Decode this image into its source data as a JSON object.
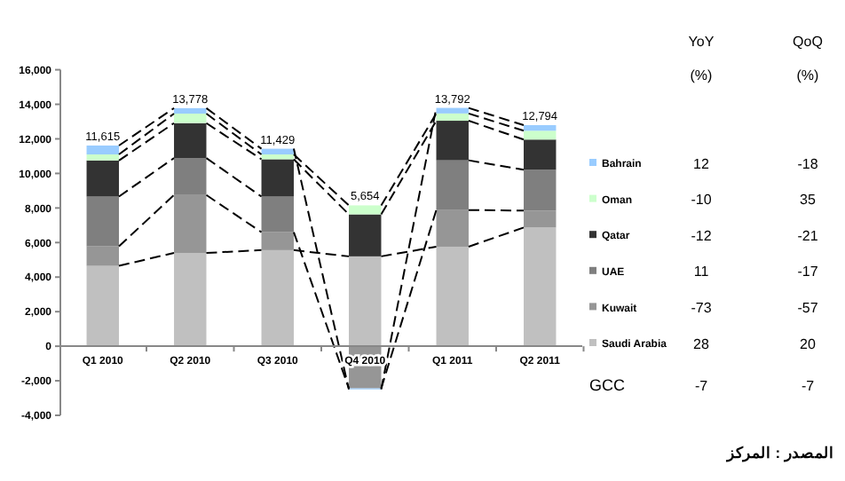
{
  "chart_data": {
    "type": "bar",
    "stacked": true,
    "categories": [
      "Q1 2010",
      "Q2 2010",
      "Q3 2010",
      "Q4 2010",
      "Q1 2011",
      "Q2 2011"
    ],
    "series": [
      {
        "name": "Saudi Arabia",
        "color": "#c0c0c0",
        "values": [
          4650,
          5400,
          5560,
          5200,
          5760,
          6870
        ]
      },
      {
        "name": "Kuwait",
        "color": "#969696",
        "values": [
          1130,
          3350,
          1040,
          -2440,
          2120,
          980
        ]
      },
      {
        "name": "UAE",
        "color": "#7f7f7f",
        "values": [
          2880,
          2140,
          2060,
          null,
          2880,
          2360
        ]
      },
      {
        "name": "Qatar",
        "color": "#333333",
        "values": [
          2090,
          2020,
          2160,
          2430,
          2290,
          1750
        ]
      },
      {
        "name": "Oman",
        "color": "#ccffcc",
        "values": [
          350,
          550,
          280,
          520,
          420,
          510
        ]
      },
      {
        "name": "Bahrain",
        "color": "#99ccff",
        "values": [
          515,
          318,
          329,
          -56,
          322,
          324
        ]
      }
    ],
    "totals": [
      "11,615",
      "13,778",
      "11,429",
      "5,654",
      "13,792",
      "12,794"
    ],
    "ylim": [
      -4000,
      16000
    ],
    "yticks": [
      {
        "value": -4000,
        "label": "-4,000"
      },
      {
        "value": -2000,
        "label": "-2,000"
      },
      0,
      {
        "value": 2000,
        "label": "2,000"
      },
      {
        "value": 4000,
        "label": "4,000"
      },
      {
        "value": 6000,
        "label": "6,000"
      },
      {
        "value": 8000,
        "label": "8,000"
      },
      {
        "value": 10000,
        "label": "10,000"
      },
      {
        "value": 12000,
        "label": "12,000"
      },
      {
        "value": 14000,
        "label": "14,000"
      },
      {
        "value": 16000,
        "label": "16,000"
      }
    ],
    "legend": "right",
    "annotations": [
      "YoY",
      "(%)",
      "QoQ",
      "(%)",
      "12",
      "-18",
      "-10",
      "35",
      "-12",
      "-21",
      "11",
      "-17",
      "-73",
      "-57",
      "28",
      "20",
      "GCC",
      "-7",
      "-7",
      "المصدر : المركز"
    ]
  }
}
